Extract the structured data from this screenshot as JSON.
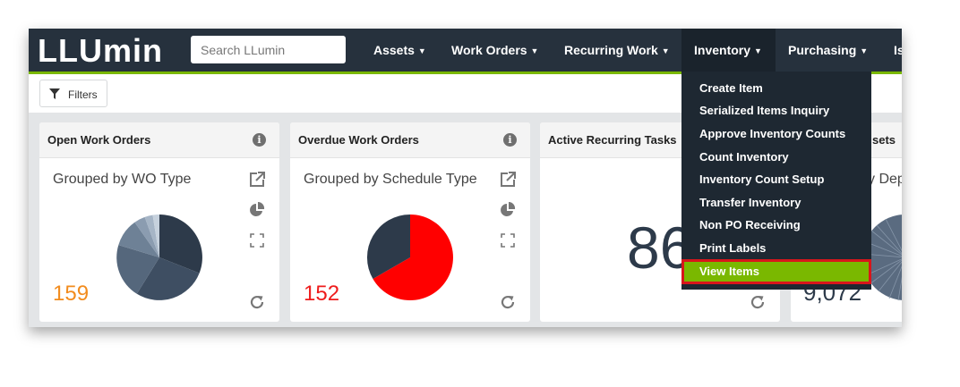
{
  "header": {
    "logo_text": "LLUmin",
    "search_placeholder": "Search LLumin",
    "nav": [
      {
        "label": "Assets"
      },
      {
        "label": "Work Orders"
      },
      {
        "label": "Recurring Work"
      },
      {
        "label": "Inventory"
      },
      {
        "label": "Purchasing"
      },
      {
        "label": "Is"
      }
    ],
    "caret": "▼"
  },
  "toolbar": {
    "filters_label": "Filters"
  },
  "cards": [
    {
      "title": "Open Work Orders",
      "subtitle": "Grouped by WO Type",
      "value": "159",
      "value_color": "#f28c1e"
    },
    {
      "title": "Overdue Work Orders",
      "subtitle": "Grouped by Schedule Type",
      "value": "152",
      "value_color": "#ee1c1c"
    },
    {
      "title": "Active Recurring Tasks",
      "value": "86"
    },
    {
      "title": "sets",
      "subtitle": "y Dep",
      "value": "9,072"
    }
  ],
  "inventory_menu": {
    "items": [
      {
        "label": "Create Item"
      },
      {
        "label": "Serialized Items Inquiry"
      },
      {
        "label": "Approve Inventory Counts"
      },
      {
        "label": "Count Inventory"
      },
      {
        "label": "Inventory Count Setup"
      },
      {
        "label": "Transfer Inventory"
      },
      {
        "label": "Non PO Receiving"
      },
      {
        "label": "Print Labels"
      },
      {
        "label": "View Items"
      }
    ],
    "highlight_color": "#7ab800",
    "highlight_border": "#d8161b"
  },
  "colors": {
    "header_bg": "#26313d",
    "accent_green": "#7ab800"
  }
}
